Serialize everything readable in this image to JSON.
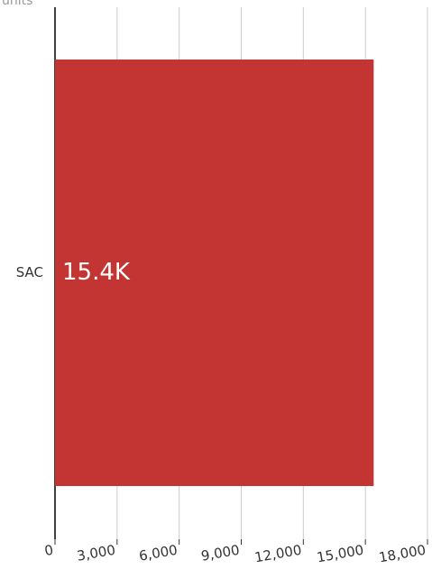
{
  "chart_data": {
    "type": "hbar",
    "axis_label": "units",
    "categories": [
      "SAC"
    ],
    "values": [
      15400
    ],
    "value_labels": [
      "15.4K"
    ],
    "color": "#c33532",
    "xlim": [
      0,
      18000
    ],
    "xticks": [
      0,
      {
        "value": 3000,
        "label": "3,000"
      },
      {
        "value": 6000,
        "label": "6,000"
      },
      {
        "value": 9000,
        "label": "9,000"
      },
      {
        "value": 12000,
        "label": "12,000"
      },
      {
        "value": 15000,
        "label": "15,000"
      },
      {
        "value": 18000,
        "label": "18,000"
      }
    ],
    "grid": true
  }
}
